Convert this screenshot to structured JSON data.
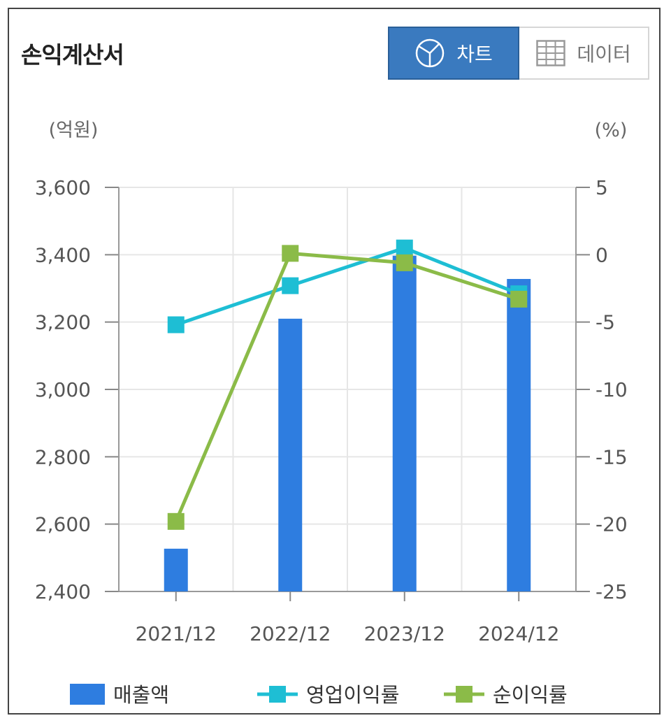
{
  "header": {
    "title": "손익계산서",
    "chart_button_label": "차트",
    "data_button_label": "데이터",
    "chart_icon": "pie-chart-icon",
    "data_icon": "table-grid-icon"
  },
  "chart_data": {
    "type": "bar",
    "categories": [
      "2021/12",
      "2022/12",
      "2023/12",
      "2024/12"
    ],
    "y_left_unit": "(억원)",
    "y_right_unit": "(%)",
    "y_left_ticks": [
      "3,600",
      "3,400",
      "3,200",
      "3,000",
      "2,800",
      "2,600",
      "2,400"
    ],
    "y_right_ticks": [
      "5",
      "0",
      "-5",
      "-10",
      "-15",
      "-20",
      "-25"
    ],
    "ylim_left": [
      2400,
      3600
    ],
    "ylim_right": [
      -25,
      5
    ],
    "grid": true,
    "legend_position": "bottom",
    "series": [
      {
        "name": "매출액",
        "type": "bar",
        "axis": "left",
        "color": "#2e7de0",
        "values": [
          2527,
          3210,
          3397,
          3328
        ]
      },
      {
        "name": "영업이익률",
        "type": "line",
        "axis": "right",
        "color": "#1ebed4",
        "values": [
          -5.2,
          -2.3,
          0.5,
          -2.9
        ]
      },
      {
        "name": "순이익률",
        "type": "line",
        "axis": "right",
        "color": "#8bbb48",
        "values": [
          -19.8,
          0.1,
          -0.6,
          -3.3
        ]
      }
    ]
  }
}
